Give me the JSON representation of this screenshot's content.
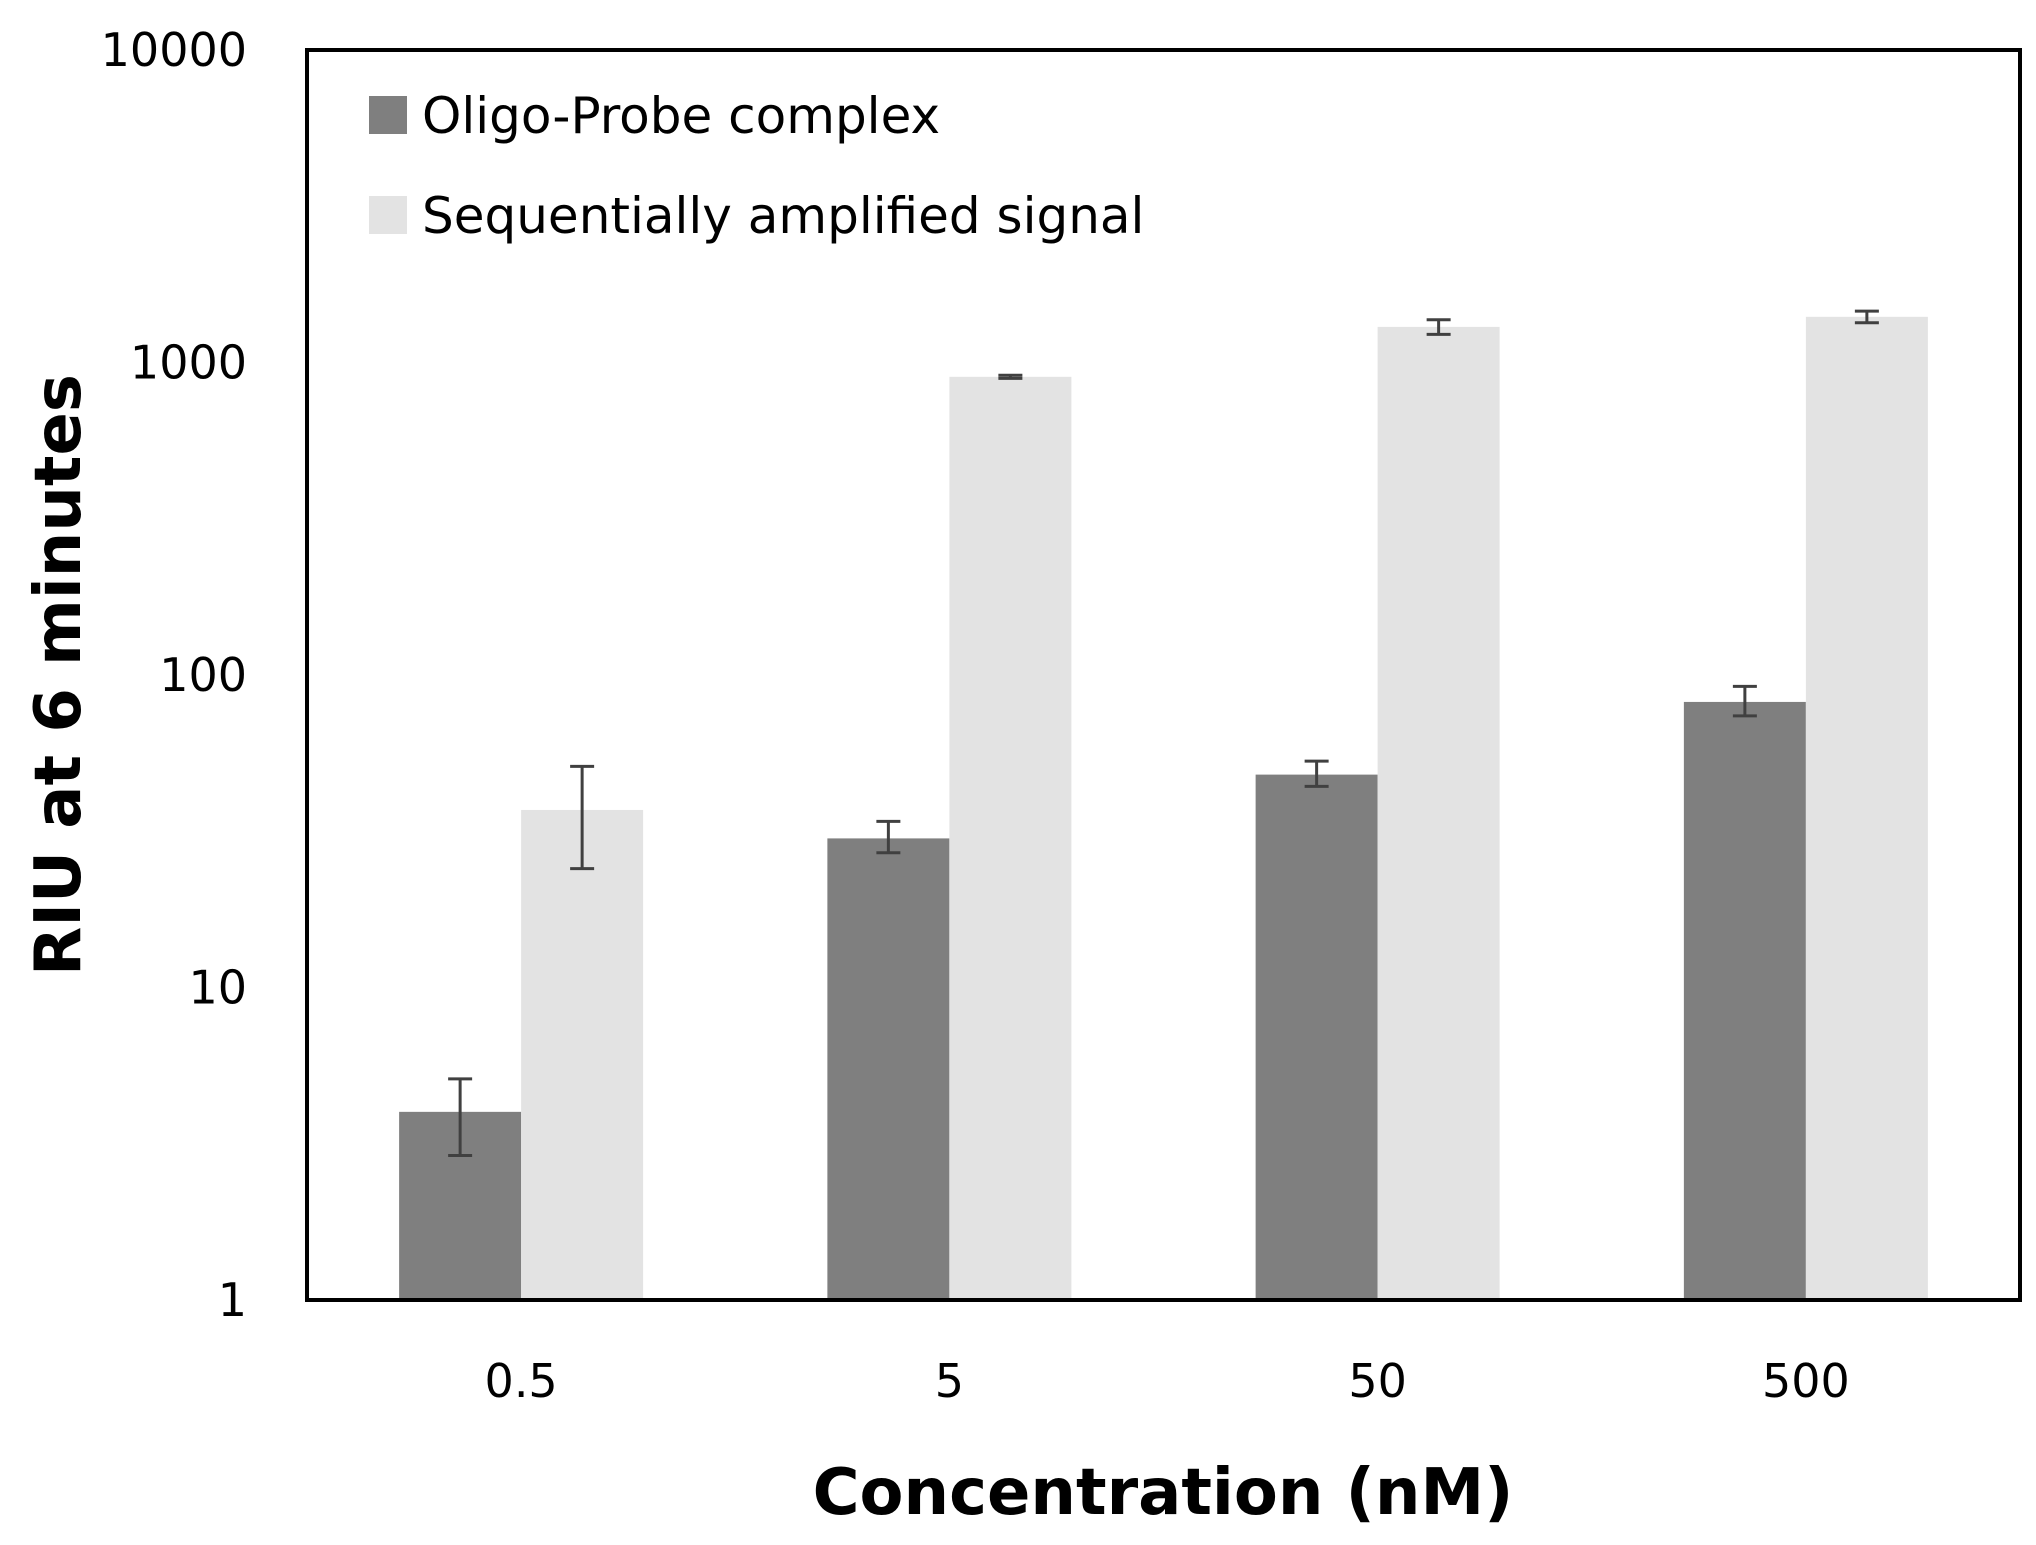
{
  "chart_data": {
    "type": "bar",
    "scale": "log",
    "categories": [
      "0.5",
      "5",
      "50",
      "500"
    ],
    "series": [
      {
        "name": "Oligo-Probe complex",
        "color": "#7f7f7f",
        "values": [
          4,
          30,
          48,
          82
        ],
        "err_low": [
          2.9,
          27,
          44,
          74
        ],
        "err_high": [
          5.1,
          34,
          53,
          92
        ]
      },
      {
        "name": "Sequentially amplified signal",
        "color": "#e3e3e3",
        "values": [
          37,
          900,
          1300,
          1400
        ],
        "err_low": [
          24,
          890,
          1230,
          1340
        ],
        "err_high": [
          51,
          910,
          1370,
          1460
        ]
      }
    ],
    "yticks": [
      "1",
      "10",
      "100",
      "1000",
      "10000"
    ],
    "ylim": [
      1,
      10000
    ],
    "xlabel": "Concentration (nM)",
    "ylabel": "RIU at 6 minutes",
    "legend_position": "top-left",
    "grid": false
  }
}
